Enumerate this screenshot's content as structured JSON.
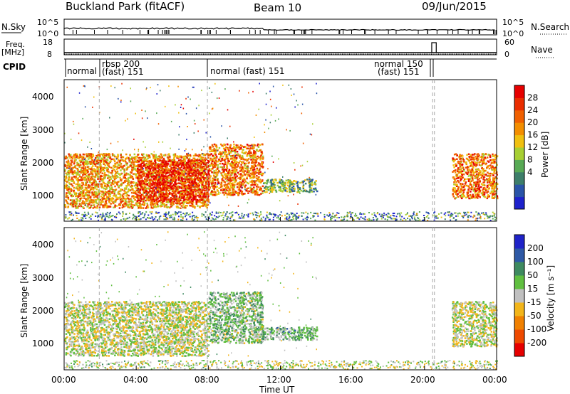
{
  "header": {
    "title": "Buckland Park (fitACF)",
    "beam": "Beam 10",
    "date": "09/Jun/2015"
  },
  "top_panels": {
    "nsky_label": "N.Sky",
    "nsky_ticks": [
      "10^5",
      "10^0"
    ],
    "nsearch_label": "N.Search",
    "nsearch_ticks": [
      "10^5",
      "10^0"
    ],
    "freq_label_line1": "Freq.",
    "freq_label_line2": "[MHz]",
    "freq_ticks": [
      "18",
      "8"
    ],
    "nave_label": "Nave",
    "nave_ticks": [
      "60",
      "0"
    ],
    "cpid_label": "CPID",
    "cpid_segments": [
      {
        "label": "normal",
        "sub": ""
      },
      {
        "label": "rbsp 200",
        "sub": "(fast) 151"
      },
      {
        "label": "normal (fast)  151",
        "sub": ""
      },
      {
        "label": "normal 150",
        "sub": "(fast) 151"
      }
    ]
  },
  "power_panel": {
    "ylabel": "Slant Range [km]",
    "yticks": [
      "4000",
      "3000",
      "2000",
      "1000"
    ],
    "colorbar_label": "Power [dB]",
    "colorbar_ticks": [
      "28",
      "24",
      "20",
      "16",
      "12",
      "8",
      "4"
    ],
    "colors": [
      "#1e22cc",
      "#2a54a8",
      "#3d7e6a",
      "#58aa55",
      "#a7cf33",
      "#f0c010",
      "#f38e00",
      "#f06000",
      "#ea2d00",
      "#e60000"
    ]
  },
  "velocity_panel": {
    "ylabel": "Slant Range [km]",
    "yticks": [
      "4000",
      "3000",
      "2000",
      "1000"
    ],
    "colorbar_label": "Velocity [m s⁻¹]",
    "colorbar_ticks": [
      "200",
      "100",
      "50",
      "15",
      "-15",
      "-50",
      "-100",
      "-200"
    ],
    "colors": [
      "#1f23c8",
      "#2e59a6",
      "#3e8a60",
      "#60bf40",
      "#c0c0c0",
      "#f2b51a",
      "#f08000",
      "#ee4a00",
      "#e60000"
    ]
  },
  "xaxis": {
    "ticks": [
      "00:00",
      "04:00",
      "08:00",
      "12:00",
      "16:00",
      "20:00",
      "00:00"
    ],
    "label": "Time UT"
  },
  "chart_data": {
    "type": "heatmap",
    "title": "Buckland Park (fitACF)",
    "xlabel": "Time UT",
    "ylabel": "Slant Range [km]",
    "xlim": [
      "00:00",
      "24:00"
    ],
    "ylim": [
      180,
      4600
    ],
    "panels": [
      {
        "name": "Power",
        "colorbar": "Power [dB]",
        "crange": [
          0,
          30
        ],
        "echo_regions": [
          {
            "t_start": 0.0,
            "t_end": 8.0,
            "range_km": [
              500,
              2200
            ],
            "value": 20
          },
          {
            "t_start": 4.0,
            "t_end": 8.0,
            "range_km": [
              700,
              2000
            ],
            "value": 28
          },
          {
            "t_start": 8.0,
            "t_end": 11.0,
            "range_km": [
              900,
              2500
            ],
            "value": 22
          },
          {
            "t_start": 11.0,
            "t_end": 14.0,
            "range_km": [
              1000,
              1400
            ],
            "value": 10
          },
          {
            "t_start": 21.5,
            "t_end": 24.0,
            "range_km": [
              800,
              2200
            ],
            "value": 22
          }
        ]
      },
      {
        "name": "Velocity",
        "colorbar": "Velocity [m s⁻¹]",
        "crange": [
          -200,
          200
        ],
        "echo_regions": [
          {
            "t_start": 0.0,
            "t_end": 8.0,
            "range_km": [
              500,
              2200
            ],
            "value": 0
          },
          {
            "t_start": 8.0,
            "t_end": 11.0,
            "range_km": [
              900,
              2500
            ],
            "value": 40
          },
          {
            "t_start": 11.0,
            "t_end": 14.0,
            "range_km": [
              1000,
              1400
            ],
            "value": 60
          },
          {
            "t_start": 21.5,
            "t_end": 24.0,
            "range_km": [
              800,
              2200
            ],
            "value": 0
          }
        ]
      }
    ]
  }
}
